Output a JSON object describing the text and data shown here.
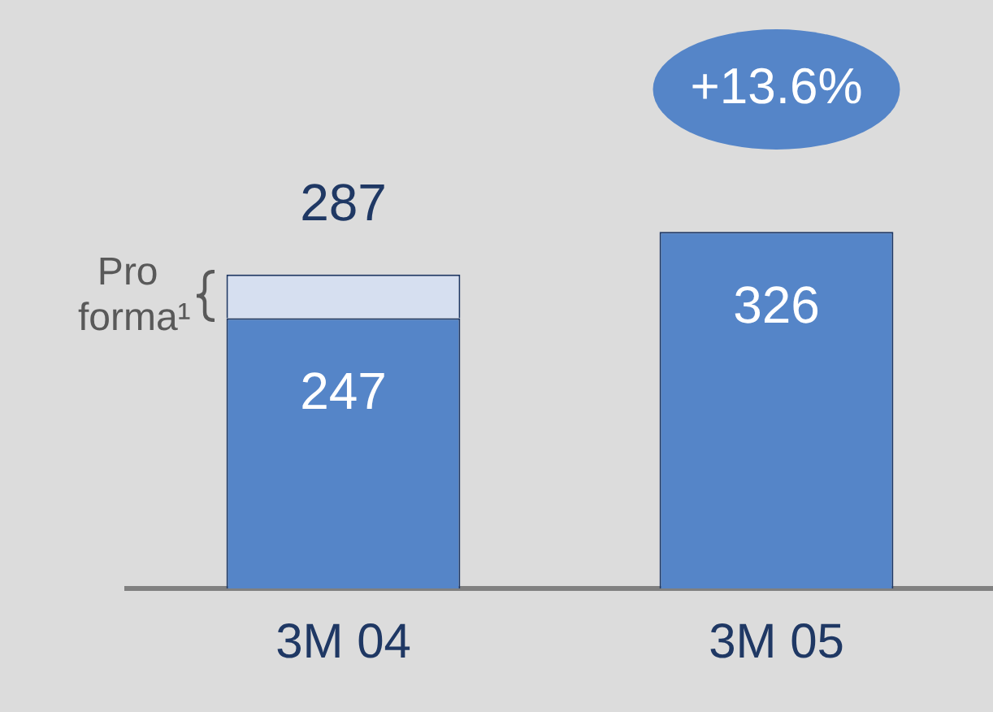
{
  "chart_data": {
    "type": "bar",
    "stacked": true,
    "categories": [
      "3M 04",
      "3M 05"
    ],
    "series": [
      {
        "values": [
          247,
          326
        ],
        "color": "#5585c8",
        "value_labels": [
          "247",
          "326"
        ]
      },
      {
        "name": "Pro forma¹",
        "values": [
          40,
          null
        ],
        "color": "#d6dff0"
      }
    ],
    "totals": [
      "287",
      null
    ],
    "annotations": [
      "+13.6%"
    ],
    "legend": false,
    "grid": false
  }
}
